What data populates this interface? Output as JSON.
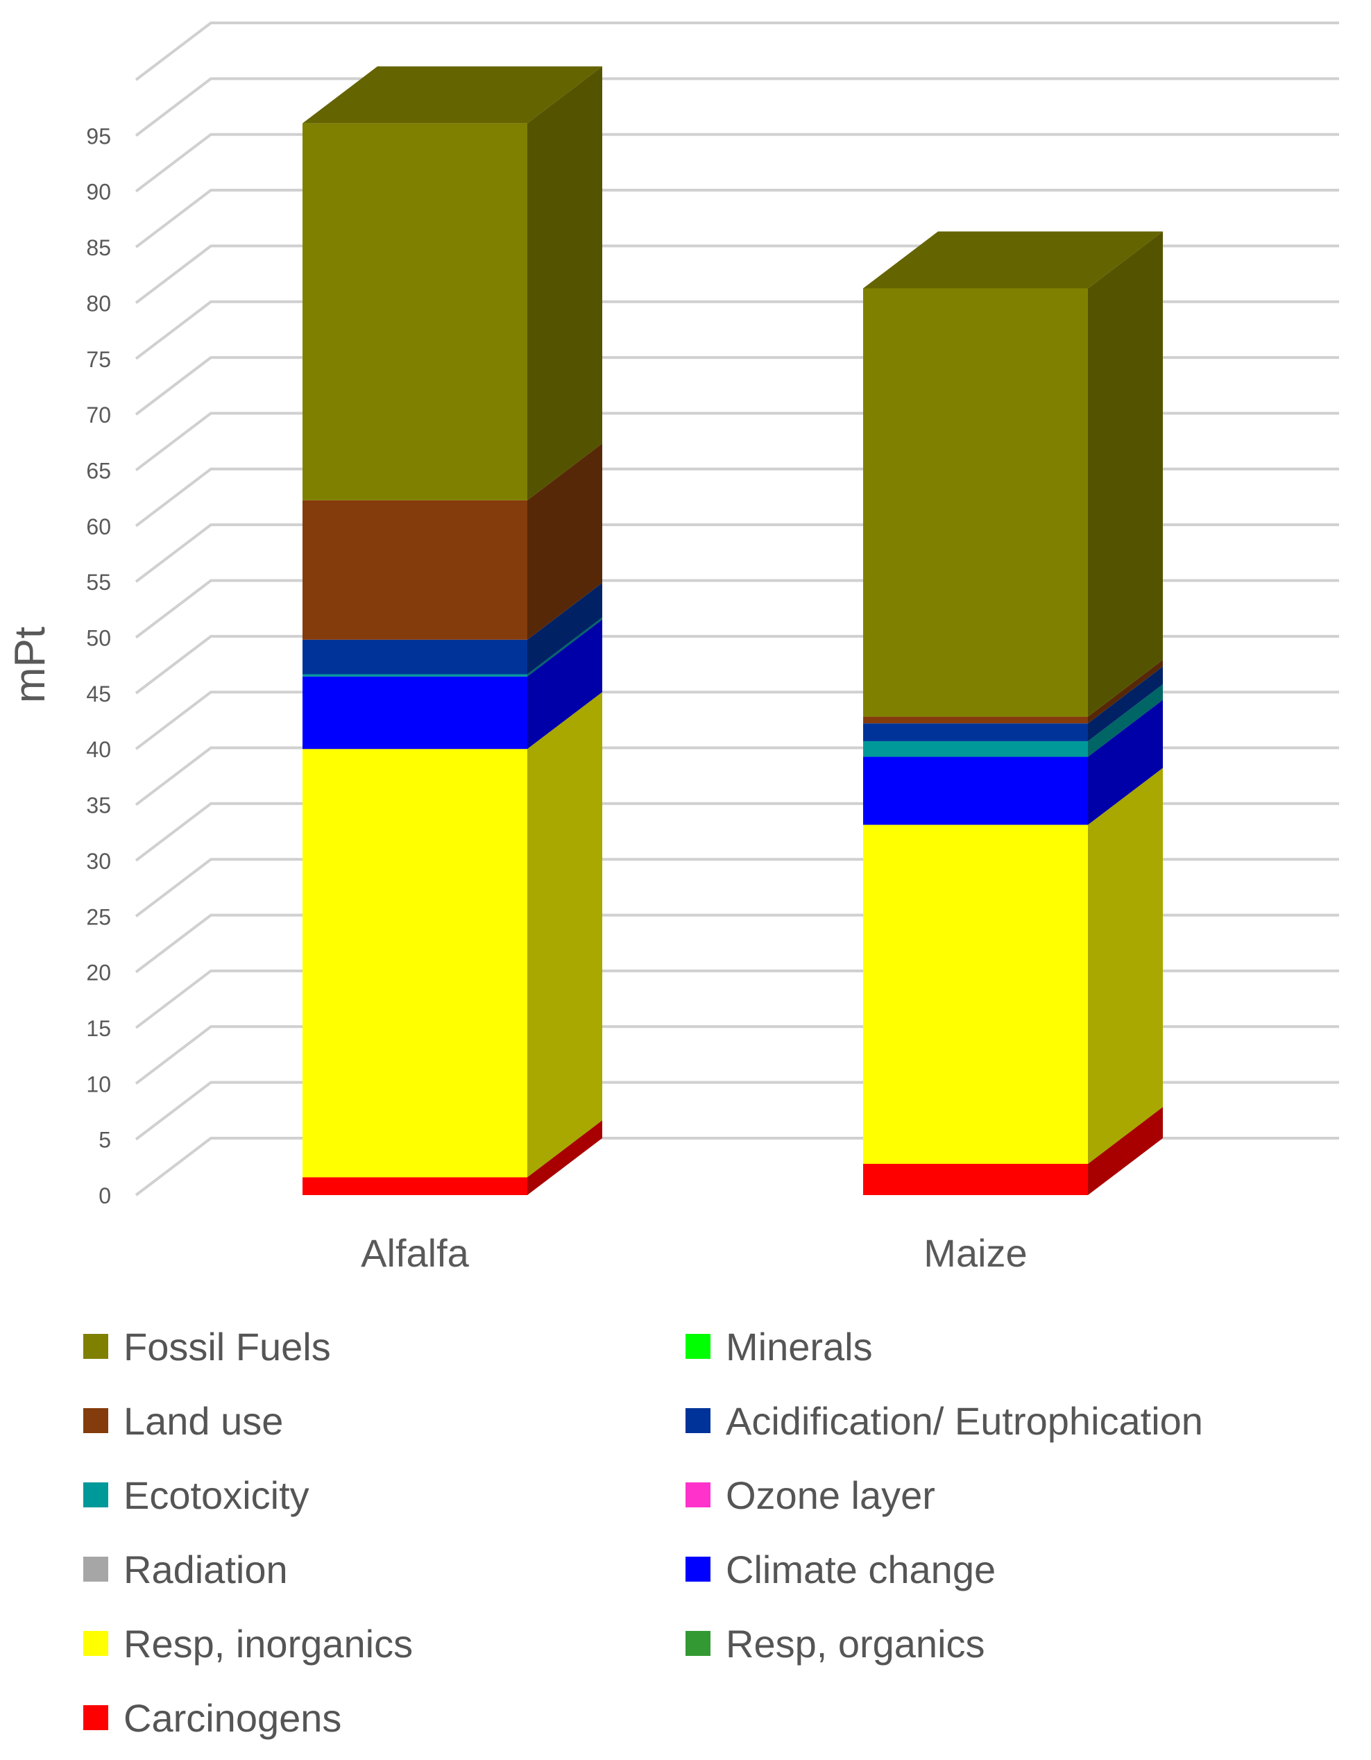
{
  "chart_data": {
    "type": "bar",
    "stacked": true,
    "style": "3d",
    "title": "",
    "xlabel": "",
    "ylabel": "mPt",
    "ylim": [
      0,
      100
    ],
    "yticks": [
      0,
      5,
      10,
      15,
      20,
      25,
      30,
      35,
      40,
      45,
      50,
      55,
      60,
      65,
      70,
      75,
      80,
      85,
      90,
      95
    ],
    "grid": true,
    "categories": [
      "Alfalfa",
      "Maize"
    ],
    "series": [
      {
        "name": "Carcinogens",
        "color": "#FF0000",
        "values": [
          1.6,
          2.8
        ]
      },
      {
        "name": "Resp, organics",
        "color": "#339933",
        "values": [
          0.0,
          0.0
        ]
      },
      {
        "name": "Resp, inorganics",
        "color": "#FFFF00",
        "values": [
          38.4,
          30.4
        ]
      },
      {
        "name": "Climate change",
        "color": "#0000FF",
        "values": [
          6.5,
          6.1
        ]
      },
      {
        "name": "Radiation",
        "color": "#A6A6A6",
        "values": [
          0.0,
          0.0
        ]
      },
      {
        "name": "Ozone layer",
        "color": "#FF33CC",
        "values": [
          0.0,
          0.0
        ]
      },
      {
        "name": "Ecotoxicity",
        "color": "#009999",
        "values": [
          0.2,
          1.4
        ]
      },
      {
        "name": "Acidification/ Eutrophication",
        "color": "#003399",
        "values": [
          3.1,
          1.6
        ]
      },
      {
        "name": "Minerals",
        "color": "#00FF00",
        "values": [
          0.0,
          0.0
        ]
      },
      {
        "name": "Land use",
        "color": "#843C0C",
        "values": [
          12.5,
          0.6
        ]
      },
      {
        "name": "Fossil Fuels",
        "color": "#808000",
        "values": [
          33.8,
          38.4
        ]
      }
    ],
    "legend": {
      "position": "bottom",
      "order": [
        "Fossil Fuels",
        "Minerals",
        "Land use",
        "Acidification/ Eutrophication",
        "Ecotoxicity",
        "Ozone layer",
        "Radiation",
        "Climate change",
        "Resp, inorganics",
        "Resp, organics",
        "Carcinogens"
      ]
    }
  }
}
